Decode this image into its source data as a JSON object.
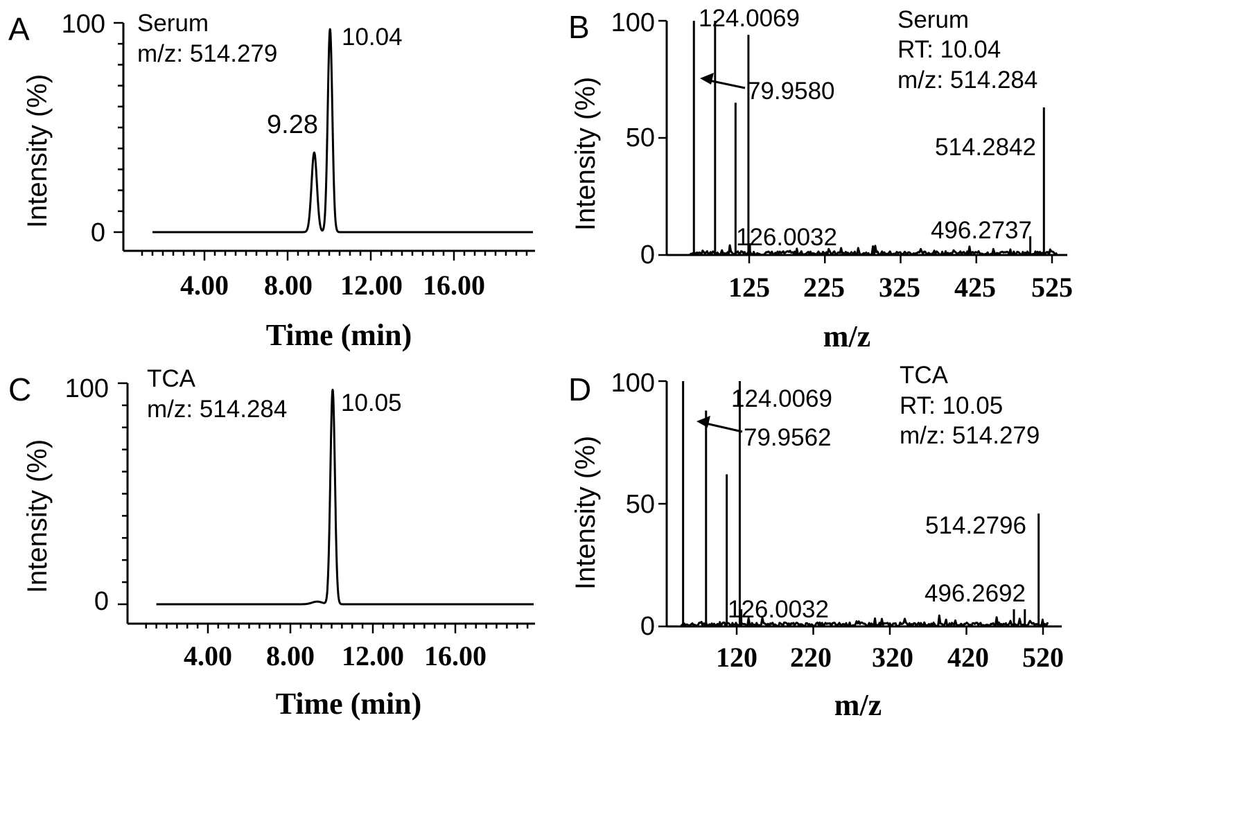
{
  "chart_data": [
    {
      "type": "line",
      "panel": "A",
      "annotation": [
        "Serum",
        "m/z: 514.279"
      ],
      "xlabel": "Time (min)",
      "ylabel": "Intensity (%)",
      "xlim": [
        0.4,
        20
      ],
      "ylim": [
        -9,
        100
      ],
      "xticks": [
        "4.00",
        "8.00",
        "12.00",
        "16.00"
      ],
      "xtick_values": [
        4,
        8,
        12,
        16
      ],
      "yticks": [
        "0",
        "100"
      ],
      "ytick_values": [
        0,
        100
      ],
      "x_range": [
        1.5,
        19.8
      ],
      "baseline": 0,
      "peaks": [
        {
          "x": 9.28,
          "y": 38,
          "width": 0.13,
          "label": "9.28"
        },
        {
          "x": 10.04,
          "y": 97,
          "width": 0.11,
          "label": "10.04"
        }
      ]
    },
    {
      "type": "bar",
      "panel": "B",
      "annotation": [
        "Serum",
        "RT: 10.04",
        "m/z: 514.284"
      ],
      "xlabel": "m/z",
      "ylabel": "Intensity (%)",
      "xlim": [
        45,
        540
      ],
      "ylim": [
        0,
        100
      ],
      "xticks": [
        "125",
        "225",
        "325",
        "425",
        "525"
      ],
      "xtick_values": [
        125,
        225,
        325,
        425,
        525
      ],
      "yticks": [
        "0",
        "50",
        "100"
      ],
      "ytick_values": [
        0,
        50,
        100
      ],
      "peaks": [
        {
          "x": 52,
          "y": 100
        },
        {
          "x": 79.958,
          "y": 100,
          "label": "79.9580"
        },
        {
          "x": 107,
          "y": 65
        },
        {
          "x": 124.0069,
          "y": 94,
          "label": "124.0069"
        },
        {
          "x": 126.0032,
          "y": 5,
          "label": "126.0032"
        },
        {
          "x": 496.2737,
          "y": 8,
          "label": "496.2737"
        },
        {
          "x": 514.2842,
          "y": 63,
          "label": "514.2842"
        }
      ]
    },
    {
      "type": "line",
      "panel": "C",
      "annotation": [
        "TCA",
        "m/z: 514.284"
      ],
      "xlabel": "Time (min)",
      "ylabel": "Intensity (%)",
      "xlim": [
        0.4,
        20
      ],
      "ylim": [
        -9,
        100
      ],
      "xticks": [
        "4.00",
        "8.00",
        "12.00",
        "16.00"
      ],
      "xtick_values": [
        4,
        8,
        12,
        16
      ],
      "yticks": [
        "0",
        "100"
      ],
      "ytick_values": [
        0,
        100
      ],
      "x_range": [
        1.5,
        19.8
      ],
      "baseline": 0,
      "peaks": [
        {
          "x": 9.3,
          "y": 1.2,
          "width": 0.25
        },
        {
          "x": 10.05,
          "y": 97,
          "width": 0.11,
          "label": "10.05"
        }
      ]
    },
    {
      "type": "bar",
      "panel": "D",
      "annotation": [
        "TCA",
        "RT: 10.05",
        "m/z: 514.279"
      ],
      "xlabel": "m/z",
      "ylabel": "Intensity (%)",
      "xlim": [
        45,
        535
      ],
      "ylim": [
        0,
        100
      ],
      "xticks": [
        "120",
        "220",
        "320",
        "420",
        "520"
      ],
      "xtick_values": [
        120,
        220,
        320,
        420,
        520
      ],
      "yticks": [
        "0",
        "50",
        "100"
      ],
      "ytick_values": [
        0,
        50,
        100
      ],
      "peaks": [
        {
          "x": 50,
          "y": 100
        },
        {
          "x": 79.9562,
          "y": 88,
          "label": "79.9562"
        },
        {
          "x": 107,
          "y": 62
        },
        {
          "x": 124.0069,
          "y": 100,
          "label": "124.0069"
        },
        {
          "x": 126.0032,
          "y": 7,
          "label": "126.0032"
        },
        {
          "x": 482,
          "y": 7
        },
        {
          "x": 496.2692,
          "y": 7,
          "label": "496.2692"
        },
        {
          "x": 514.2796,
          "y": 46,
          "label": "514.2796"
        }
      ]
    }
  ]
}
